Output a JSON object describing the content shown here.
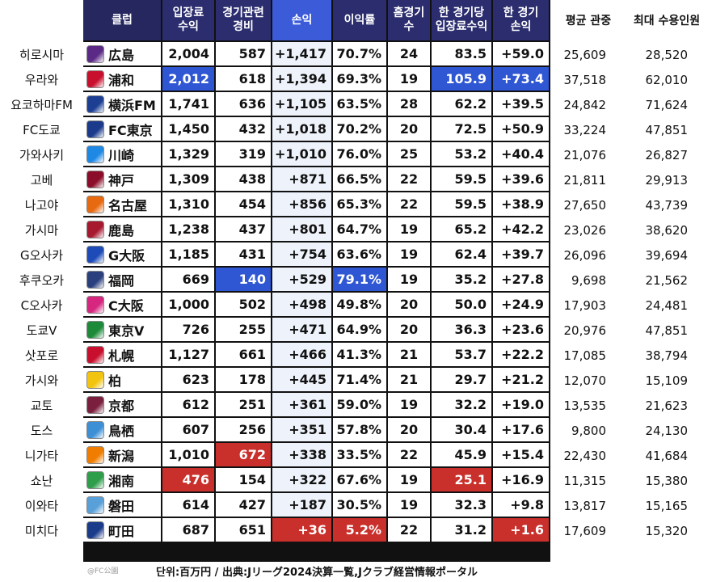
{
  "headers": {
    "club": "클럽",
    "revenue": "입장료\n수익",
    "cost": "경기관련\n경비",
    "profit": "손익",
    "margin": "이익률",
    "home": "홈경기\n수",
    "rev_per_game": "한 경기당\n입장료수익",
    "profit_per_game": "한 경기\n손익",
    "avg_att": "평균 관중",
    "capacity": "최대 수용인원"
  },
  "colors": {
    "header_bg": "#2b2d6e",
    "header_blue": "#3c5bd9",
    "highlight_blue": "#2f56d3",
    "highlight_red": "#c9302b"
  },
  "rows": [
    {
      "kr": "히로시마",
      "club": "広島",
      "logo": "sanfrecce-icon",
      "logo_color": "#5b2a86",
      "revenue": "2,004",
      "cost": "587",
      "profit": "+1,417",
      "margin": "70.7%",
      "home": "24",
      "rpg": "83.5",
      "ppg": "+59.0",
      "avg": "25,609",
      "cap": "28,520",
      "hl": {}
    },
    {
      "kr": "우라와",
      "club": "浦和",
      "logo": "reds-icon",
      "logo_color": "#c8102e",
      "revenue": "2,012",
      "cost": "618",
      "profit": "+1,394",
      "margin": "69.3%",
      "home": "19",
      "rpg": "105.9",
      "ppg": "+73.4",
      "avg": "37,518",
      "cap": "62,010",
      "hl": {
        "revenue": "blue",
        "rpg": "blue",
        "ppg": "blue"
      }
    },
    {
      "kr": "요코하마FM",
      "club": "横浜FM",
      "logo": "marinos-icon",
      "logo_color": "#1c3f94",
      "revenue": "1,741",
      "cost": "636",
      "profit": "+1,105",
      "margin": "63.5%",
      "home": "28",
      "rpg": "62.2",
      "ppg": "+39.5",
      "avg": "24,842",
      "cap": "71,624",
      "hl": {}
    },
    {
      "kr": "FC도쿄",
      "club": "FC東京",
      "logo": "fc-tokyo-icon",
      "logo_color": "#1b3a8c",
      "revenue": "1,450",
      "cost": "432",
      "profit": "+1,018",
      "margin": "70.2%",
      "home": "20",
      "rpg": "72.5",
      "ppg": "+50.9",
      "avg": "33,224",
      "cap": "47,851",
      "hl": {}
    },
    {
      "kr": "가와사키",
      "club": "川崎",
      "logo": "frontale-icon",
      "logo_color": "#1e88e5",
      "revenue": "1,329",
      "cost": "319",
      "profit": "+1,010",
      "margin": "76.0%",
      "home": "25",
      "rpg": "53.2",
      "ppg": "+40.4",
      "avg": "21,076",
      "cap": "26,827",
      "hl": {}
    },
    {
      "kr": "고베",
      "club": "神戸",
      "logo": "vissel-icon",
      "logo_color": "#8b0d2a",
      "revenue": "1,309",
      "cost": "438",
      "profit": "+871",
      "margin": "66.5%",
      "home": "22",
      "rpg": "59.5",
      "ppg": "+39.6",
      "avg": "21,811",
      "cap": "29,913",
      "hl": {}
    },
    {
      "kr": "나고야",
      "club": "名古屋",
      "logo": "grampus-icon",
      "logo_color": "#e86a10",
      "revenue": "1,310",
      "cost": "454",
      "profit": "+856",
      "margin": "65.3%",
      "home": "22",
      "rpg": "59.5",
      "ppg": "+38.9",
      "avg": "27,650",
      "cap": "43,739",
      "hl": {}
    },
    {
      "kr": "가시마",
      "club": "鹿島",
      "logo": "antlers-icon",
      "logo_color": "#a6192e",
      "revenue": "1,238",
      "cost": "437",
      "profit": "+801",
      "margin": "64.7%",
      "home": "19",
      "rpg": "65.2",
      "ppg": "+42.2",
      "avg": "23,026",
      "cap": "38,620",
      "hl": {}
    },
    {
      "kr": "G오사카",
      "club": "G大阪",
      "logo": "gamba-icon",
      "logo_color": "#1d4bb8",
      "revenue": "1,185",
      "cost": "431",
      "profit": "+754",
      "margin": "63.6%",
      "home": "19",
      "rpg": "62.4",
      "ppg": "+39.7",
      "avg": "26,096",
      "cap": "39,694",
      "hl": {}
    },
    {
      "kr": "후쿠오카",
      "club": "福岡",
      "logo": "avispa-icon",
      "logo_color": "#2a3f7e",
      "revenue": "669",
      "cost": "140",
      "profit": "+529",
      "margin": "79.1%",
      "home": "19",
      "rpg": "35.2",
      "ppg": "+27.8",
      "avg": "9,698",
      "cap": "21,562",
      "hl": {
        "cost": "blue",
        "margin": "blue"
      }
    },
    {
      "kr": "C오사카",
      "club": "C大阪",
      "logo": "cerezo-icon",
      "logo_color": "#d6267f",
      "revenue": "1,000",
      "cost": "502",
      "profit": "+498",
      "margin": "49.8%",
      "home": "20",
      "rpg": "50.0",
      "ppg": "+24.9",
      "avg": "17,903",
      "cap": "24,481",
      "hl": {}
    },
    {
      "kr": "도쿄V",
      "club": "東京V",
      "logo": "verdy-icon",
      "logo_color": "#1d8a3a",
      "revenue": "726",
      "cost": "255",
      "profit": "+471",
      "margin": "64.9%",
      "home": "20",
      "rpg": "36.3",
      "ppg": "+23.6",
      "avg": "20,976",
      "cap": "47,851",
      "hl": {}
    },
    {
      "kr": "삿포로",
      "club": "札幌",
      "logo": "consadole-icon",
      "logo_color": "#c8102e",
      "revenue": "1,127",
      "cost": "661",
      "profit": "+466",
      "margin": "41.3%",
      "home": "21",
      "rpg": "53.7",
      "ppg": "+22.2",
      "avg": "17,085",
      "cap": "38,794",
      "hl": {}
    },
    {
      "kr": "가시와",
      "club": "柏",
      "logo": "reysol-icon",
      "logo_color": "#f2c40f",
      "revenue": "623",
      "cost": "178",
      "profit": "+445",
      "margin": "71.4%",
      "home": "21",
      "rpg": "29.7",
      "ppg": "+21.2",
      "avg": "12,070",
      "cap": "15,109",
      "hl": {}
    },
    {
      "kr": "교토",
      "club": "京都",
      "logo": "sanga-icon",
      "logo_color": "#7a1f3d",
      "revenue": "612",
      "cost": "251",
      "profit": "+361",
      "margin": "59.0%",
      "home": "19",
      "rpg": "32.2",
      "ppg": "+19.0",
      "avg": "13,535",
      "cap": "21,623",
      "hl": {}
    },
    {
      "kr": "도스",
      "club": "鳥栖",
      "logo": "sagan-icon",
      "logo_color": "#3d8fd6",
      "revenue": "607",
      "cost": "256",
      "profit": "+351",
      "margin": "57.8%",
      "home": "20",
      "rpg": "30.4",
      "ppg": "+17.6",
      "avg": "9,800",
      "cap": "24,130",
      "hl": {}
    },
    {
      "kr": "니가타",
      "club": "新潟",
      "logo": "albirex-icon",
      "logo_color": "#f07d00",
      "revenue": "1,010",
      "cost": "672",
      "profit": "+338",
      "margin": "33.5%",
      "home": "22",
      "rpg": "45.9",
      "ppg": "+15.4",
      "avg": "22,430",
      "cap": "41,684",
      "hl": {
        "cost": "red"
      }
    },
    {
      "kr": "쇼난",
      "club": "湘南",
      "logo": "bellmare-icon",
      "logo_color": "#2e9e4a",
      "revenue": "476",
      "cost": "154",
      "profit": "+322",
      "margin": "67.6%",
      "home": "19",
      "rpg": "25.1",
      "ppg": "+16.9",
      "avg": "11,315",
      "cap": "15,380",
      "hl": {
        "revenue": "red",
        "rpg": "red"
      }
    },
    {
      "kr": "이와타",
      "club": "磐田",
      "logo": "jubilo-icon",
      "logo_color": "#5aa0d8",
      "revenue": "614",
      "cost": "427",
      "profit": "+187",
      "margin": "30.5%",
      "home": "19",
      "rpg": "32.3",
      "ppg": "+9.8",
      "avg": "13,817",
      "cap": "15,165",
      "hl": {}
    },
    {
      "kr": "미치다",
      "club": "町田",
      "logo": "zelvia-icon",
      "logo_color": "#1a3a8a",
      "revenue": "687",
      "cost": "651",
      "profit": "+36",
      "margin": "5.2%",
      "home": "22",
      "rpg": "31.2",
      "ppg": "+1.6",
      "avg": "17,609",
      "cap": "15,320",
      "hl": {
        "profit": "red",
        "margin": "red",
        "ppg": "red"
      }
    }
  ],
  "footer": "단위:百万円 / 出典:Jリーグ2024決算一覧,Jクラブ経営情報ポータル",
  "watermark": "@FC公園"
}
